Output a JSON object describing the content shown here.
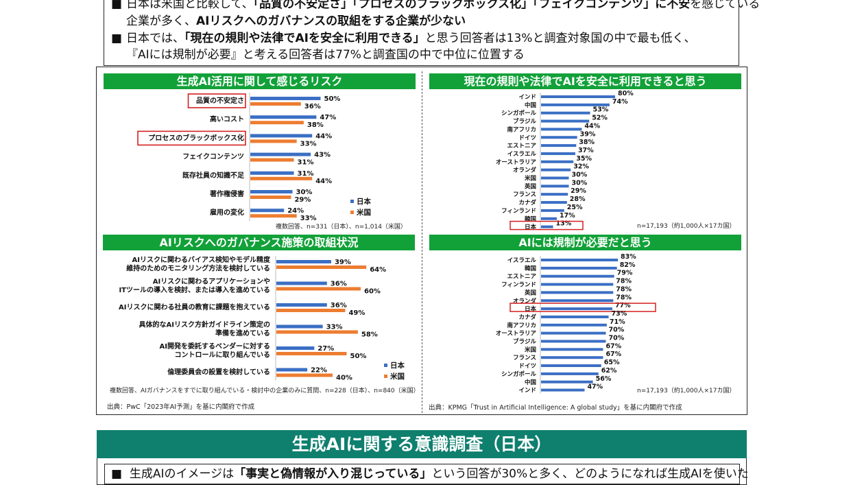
{
  "summary": {
    "line1": {
      "pre": "日本は米国と比較して、",
      "bold": "「品質の不安定さ」「プロセスのブラックボックス化」「フェイクコンテンツ」に不安",
      "post": "を感じている"
    },
    "line2": {
      "pre": "企業が多く、",
      "bold": "AIリスクへのガバナンスの取組をする企業が少ない",
      "post": ""
    },
    "line3": {
      "pre": "日本では、",
      "bold": "「現在の規則や法律でAIを安全に利用できる」",
      "post": "と思う回答者は13%と調査対象国の中で最も低く、"
    },
    "line4": {
      "pre": "『AIには規制が必要』と考える回答者は77%と調査国の中で中位に位置する",
      "bold": "",
      "post": ""
    },
    "bullet": "■"
  },
  "colors": {
    "japan": "#3b6fc4",
    "usa": "#ed7d31",
    "header": "#12a139",
    "highlight": "#d42020",
    "teal": "#0f7f6e"
  },
  "chart_data": [
    {
      "type": "bar",
      "title": "生成AI活用に関して感じるリスク",
      "categories": [
        "品質の不安定さ",
        "高いコスト",
        "プロセスのブラックボックス化",
        "フェイクコンテンツ",
        "既存社員の知識不足",
        "著作権侵害",
        "雇用の変化"
      ],
      "highlighted": [
        "品質の不安定さ",
        "プロセスのブラックボックス化"
      ],
      "series": [
        {
          "name": "日本",
          "values": [
            50,
            47,
            44,
            43,
            31,
            30,
            24
          ]
        },
        {
          "name": "米国",
          "values": [
            36,
            38,
            33,
            31,
            44,
            29,
            33
          ]
        }
      ],
      "unit": "%",
      "note": "複数回答、n=331（日本）、n=1,014（米国）"
    },
    {
      "type": "bar",
      "title": "AIリスクへのガバナンス施策の取組状況",
      "categories": [
        [
          "AIリスクに関わるバイアス検知やモデル精度",
          "維持のためのモニタリング方法を検討している"
        ],
        [
          "AIリスクに関わるアプリケーションや",
          "ITツールの導入を検討、または導入を進めている"
        ],
        [
          "AIリスクに関わる社員の教育に課題を抱えている"
        ],
        [
          "具体的なAIリスク方針ガイドライン策定の",
          "準備を進めている"
        ],
        [
          "AI開発を委託するベンダーに対する",
          "コントロールに取り組んでいる"
        ],
        [
          "倫理委員会の設置を検討している"
        ]
      ],
      "series": [
        {
          "name": "日本",
          "values": [
            39,
            36,
            36,
            33,
            27,
            22
          ]
        },
        {
          "name": "米国",
          "values": [
            64,
            60,
            49,
            58,
            50,
            40
          ]
        }
      ],
      "unit": "%",
      "note": "複数回答、AIガバナンスをすでに取り組んでいる・検討中の企業のみに質問、n=228（日本）、n=840（米国）"
    },
    {
      "type": "bar",
      "title": "現在の規則や法律でAIを安全に利用できると思う",
      "categories": [
        "インド",
        "中国",
        "シンガポール",
        "ブラジル",
        "南アフリカ",
        "ドイツ",
        "エストニア",
        "イスラエル",
        "オーストラリア",
        "オランダ",
        "米国",
        "英国",
        "フランス",
        "カナダ",
        "フィンランド",
        "韓国",
        "日本"
      ],
      "values": [
        80,
        74,
        53,
        52,
        44,
        39,
        38,
        37,
        35,
        32,
        30,
        30,
        29,
        28,
        25,
        17,
        13
      ],
      "highlighted": [
        "日本"
      ],
      "unit": "%",
      "note": "n=17,193（約1,000人×17カ国）"
    },
    {
      "type": "bar",
      "title": "AIには規制が必要だと思う",
      "categories": [
        "イスラエル",
        "韓国",
        "エストニア",
        "フィンランド",
        "英国",
        "オランダ",
        "日本",
        "カナダ",
        "南アフリカ",
        "オーストラリア",
        "ブラジル",
        "米国",
        "フランス",
        "ドイツ",
        "シンガポール",
        "中国",
        "インド"
      ],
      "values": [
        83,
        82,
        79,
        78,
        78,
        78,
        77,
        73,
        71,
        70,
        70,
        67,
        67,
        65,
        62,
        56,
        47
      ],
      "highlighted": [
        "日本"
      ],
      "unit": "%",
      "note": "n=17,193（約1,000人×17カ国）"
    }
  ],
  "sources": {
    "left": "出典：PwC「2023年AI予測」を基に内閣府で作成",
    "right": "出典：KPMG「Trust in Artificial Intelligence: A global study」を基に内閣府で作成"
  },
  "bottom": {
    "title": "生成AIに関する意識調査（日本）",
    "line": {
      "pre": "生成AIのイメージは",
      "bold": "「事実と偽情報が入り混じっている」",
      "post": "という回答が30%と多く、どのようになれば生成AIを使いた"
    }
  }
}
